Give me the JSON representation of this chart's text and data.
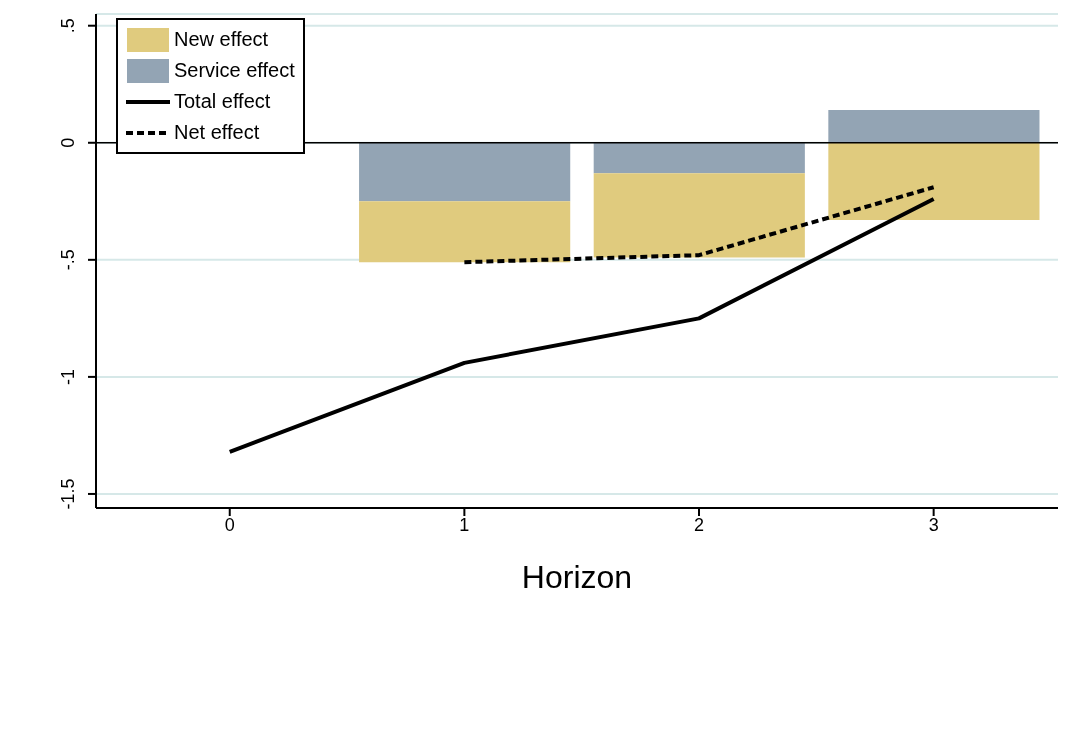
{
  "chart_data": {
    "type": "bar",
    "xlabel": "Horizon",
    "stacked": true,
    "x": [
      1,
      2,
      3
    ],
    "series": [
      {
        "name": "Service effect",
        "color": "#93a4b4",
        "values": [
          -0.25,
          -0.13,
          0.14
        ]
      },
      {
        "name": "New effect",
        "color": "#e0cb7e",
        "values": [
          -0.26,
          -0.36,
          -0.33
        ]
      },
      {
        "name": "Total effect",
        "type": "line",
        "color": "#000000",
        "line_style": "solid",
        "x": [
          0,
          1,
          2,
          3
        ],
        "values": [
          -1.32,
          -0.94,
          -0.75,
          -0.24
        ]
      },
      {
        "name": "Net effect",
        "type": "line",
        "color": "#000000",
        "line_style": "dashed",
        "x": [
          1,
          2,
          3
        ],
        "values": [
          -0.51,
          -0.48,
          -0.19
        ]
      }
    ],
    "xlim": [
      -0.57,
      3.53
    ],
    "xticks": [
      0,
      1,
      2,
      3
    ],
    "ylim": [
      -1.56,
      0.55
    ],
    "yticks": [
      {
        "value": -1.5,
        "label": "-1.5"
      },
      {
        "value": -1,
        "label": "-1"
      },
      {
        "value": -0.5,
        "label": "-.5"
      },
      0,
      {
        "value": 0.5,
        "label": ".5"
      }
    ],
    "grid": "y",
    "legend": "top left",
    "marker": "none",
    "ref_lines": [
      {
        "axis": "y",
        "value": 0,
        "color": "#000000"
      }
    ]
  }
}
